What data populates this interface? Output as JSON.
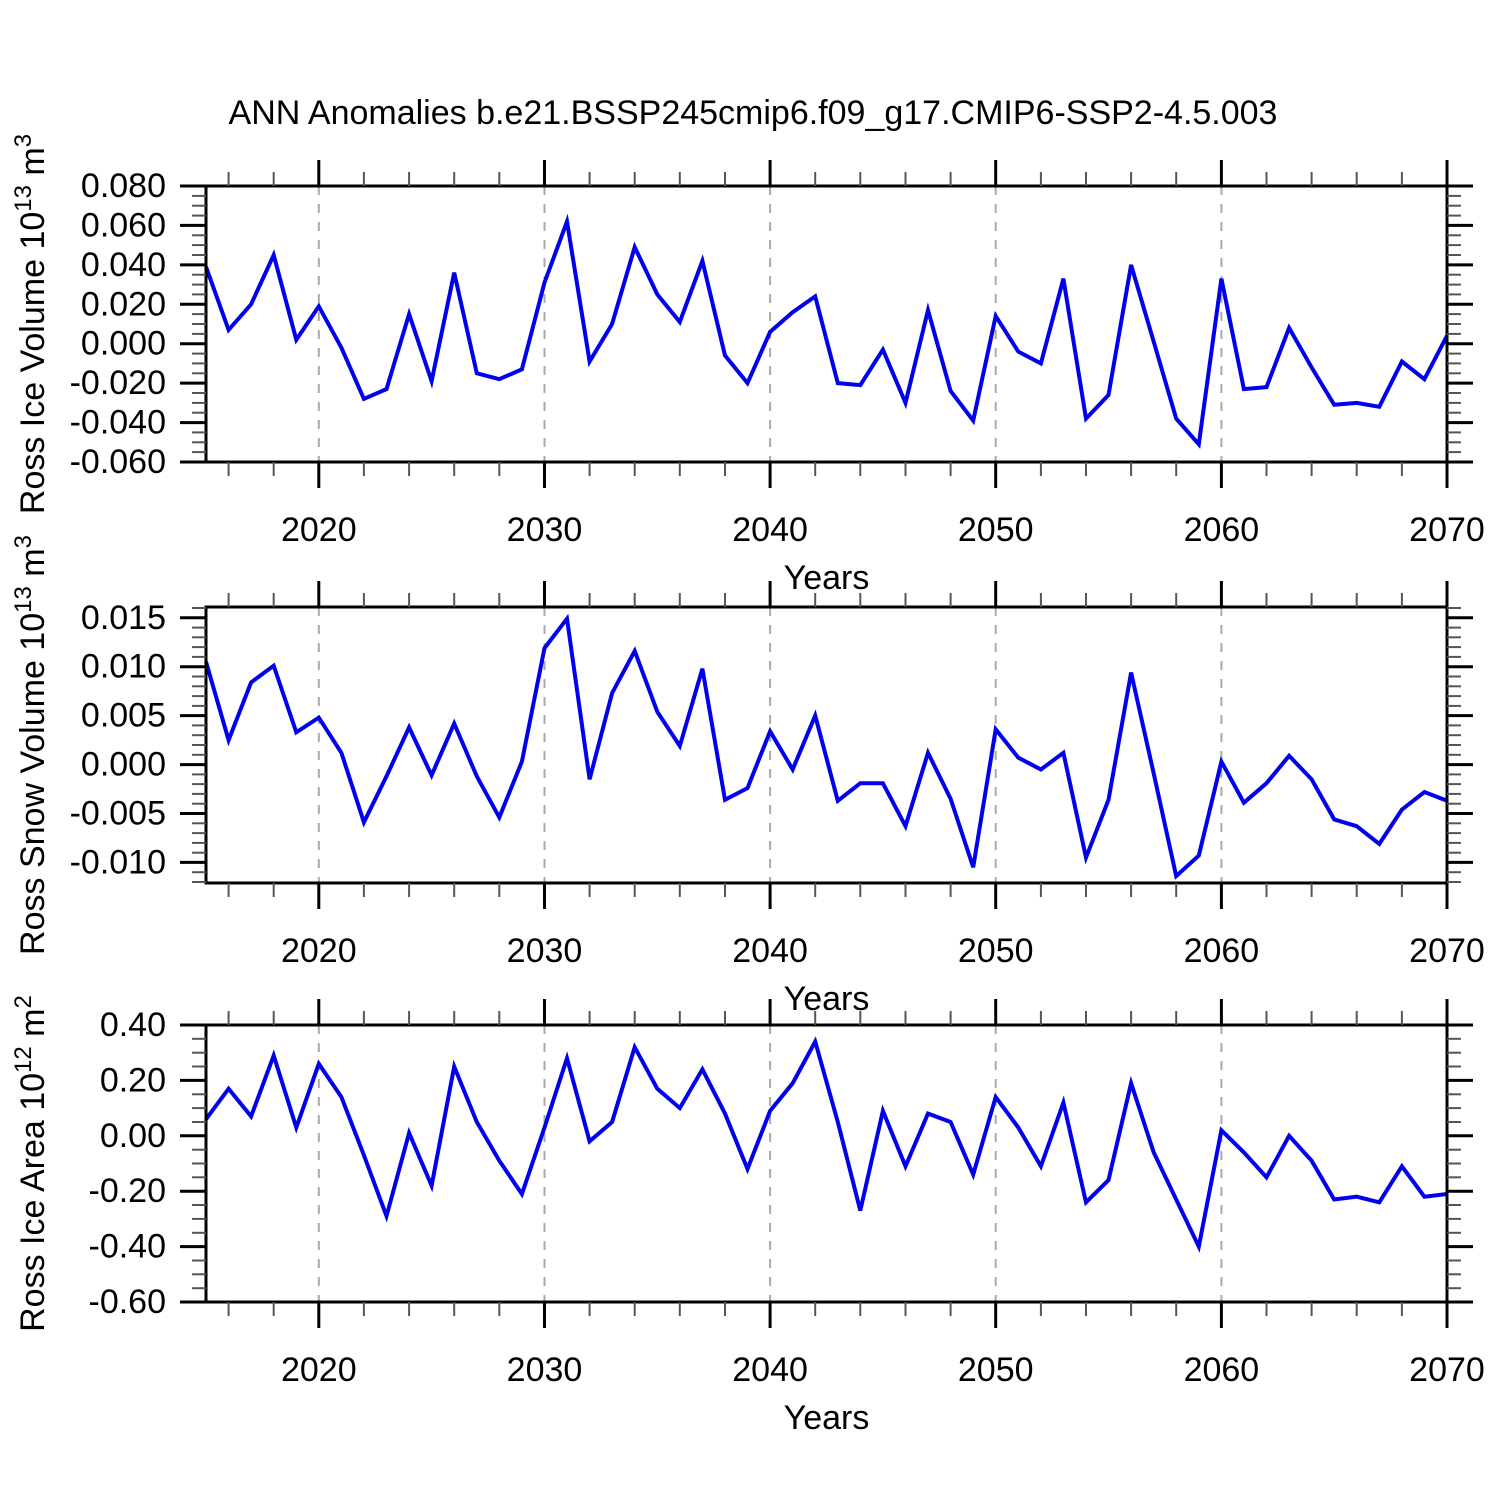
{
  "title": "ANN Anomalies b.e21.BSSP245cmip6.f09_g17.CMIP6-SSP2-4.5.003",
  "chart_data": {
    "type": "line",
    "title": "ANN Anomalies b.e21.BSSP245cmip6.f09_g17.CMIP6-SSP2-4.5.003",
    "x": {
      "label": "Years",
      "range": [
        2015,
        2070
      ],
      "years": [
        2015,
        2016,
        2017,
        2018,
        2019,
        2020,
        2021,
        2022,
        2023,
        2024,
        2025,
        2026,
        2027,
        2028,
        2029,
        2030,
        2031,
        2032,
        2033,
        2034,
        2035,
        2036,
        2037,
        2038,
        2039,
        2040,
        2041,
        2042,
        2043,
        2044,
        2045,
        2046,
        2047,
        2048,
        2049,
        2050,
        2051,
        2052,
        2053,
        2054,
        2055,
        2056,
        2057,
        2058,
        2059,
        2060,
        2061,
        2062,
        2063,
        2064,
        2065,
        2066,
        2067,
        2068,
        2069,
        2070
      ],
      "major_ticks": [
        2020,
        2030,
        2040,
        2050,
        2060,
        2070
      ],
      "major_tick_labels": [
        "2020",
        "2030",
        "2040",
        "2050",
        "2060",
        "2070"
      ],
      "minor_tick_step": 2,
      "gridline_years": [
        2020,
        2030,
        2040,
        2050,
        2060
      ]
    },
    "style": {
      "line_color": "#0000ee",
      "gridline_color": "#aaaaaa",
      "axis_color": "#000000",
      "minor_tick_color": "#555555"
    },
    "panels": [
      {
        "name": "ross-ice-volume",
        "ylabel": "Ross Ice Volume 10^13 m^3",
        "ylabel_parts": [
          {
            "t": "Ross Ice Volume 10"
          },
          {
            "t": "13",
            "sup": true
          },
          {
            "t": " m"
          },
          {
            "t": "3",
            "sup": true
          }
        ],
        "xlabel": "Years",
        "ylim": [
          -0.06,
          0.08
        ],
        "ytick_values": [
          0.08,
          0.06,
          0.04,
          0.02,
          0.0,
          -0.02,
          -0.04,
          -0.06
        ],
        "ytick_labels": [
          "0.080",
          "0.060",
          "0.040",
          "0.020",
          "0.000",
          "-0.020",
          "-0.040",
          "-0.060"
        ],
        "y_minor_step": 0.005,
        "grid": "vertical-dashed",
        "legend": "none",
        "values": [
          0.039,
          0.007,
          0.02,
          0.045,
          0.002,
          0.019,
          -0.002,
          -0.028,
          -0.023,
          0.015,
          -0.019,
          0.036,
          -0.015,
          -0.018,
          -0.013,
          0.031,
          0.062,
          -0.009,
          0.01,
          0.049,
          0.025,
          0.011,
          0.042,
          -0.006,
          -0.02,
          0.006,
          0.016,
          0.024,
          -0.02,
          -0.021,
          -0.003,
          -0.03,
          0.017,
          -0.024,
          -0.039,
          0.014,
          -0.004,
          -0.01,
          0.033,
          -0.038,
          -0.026,
          0.04,
          0.001,
          -0.038,
          -0.051,
          0.033,
          -0.023,
          -0.022,
          0.008,
          -0.012,
          -0.031,
          -0.03,
          -0.032,
          -0.009,
          -0.018,
          0.004
        ]
      },
      {
        "name": "ross-snow-volume",
        "ylabel": "Ross Snow Volume 10^13 m^3",
        "ylabel_parts": [
          {
            "t": "Ross Snow Volume 10"
          },
          {
            "t": "13",
            "sup": true
          },
          {
            "t": " m"
          },
          {
            "t": "3",
            "sup": true
          }
        ],
        "xlabel": "Years",
        "ylim": [
          -0.0121,
          0.0161
        ],
        "ytick_values": [
          0.015,
          0.01,
          0.005,
          0.0,
          -0.005,
          -0.01
        ],
        "ytick_labels": [
          "0.015",
          "0.010",
          "0.005",
          "0.000",
          "-0.005",
          "-0.010"
        ],
        "y_minor_step": 0.001,
        "grid": "vertical-dashed",
        "legend": "none",
        "values": [
          0.0105,
          0.0025,
          0.0084,
          0.0101,
          0.0033,
          0.0048,
          0.0012,
          -0.0059,
          -0.0012,
          0.0038,
          -0.0011,
          0.0042,
          -0.0012,
          -0.0054,
          0.0003,
          0.0119,
          0.0149,
          -0.0015,
          0.0073,
          0.0116,
          0.0054,
          0.0019,
          0.0098,
          -0.0036,
          -0.0024,
          0.0034,
          -0.0005,
          0.005,
          -0.0037,
          -0.0019,
          -0.0019,
          -0.0063,
          0.0012,
          -0.0035,
          -0.0105,
          0.0036,
          0.0007,
          -0.0005,
          0.0012,
          -0.0095,
          -0.0036,
          0.0094,
          -0.0009,
          -0.0114,
          -0.0093,
          0.0003,
          -0.0039,
          -0.0019,
          0.0009,
          -0.0015,
          -0.0056,
          -0.0063,
          -0.0081,
          -0.0046,
          -0.0028,
          -0.0037
        ]
      },
      {
        "name": "ross-ice-area",
        "ylabel": "Ross Ice Area 10^12 m^2",
        "ylabel_parts": [
          {
            "t": "Ross Ice Area 10"
          },
          {
            "t": "12",
            "sup": true
          },
          {
            "t": " m"
          },
          {
            "t": "2",
            "sup": true
          }
        ],
        "xlabel": "Years",
        "ylim": [
          -0.6,
          0.4
        ],
        "ytick_values": [
          0.4,
          0.2,
          0.0,
          -0.2,
          -0.4,
          -0.6
        ],
        "ytick_labels": [
          "0.40",
          "0.20",
          "0.00",
          "-0.20",
          "-0.40",
          "-0.60"
        ],
        "y_minor_step": 0.05,
        "grid": "vertical-dashed",
        "legend": "none",
        "values": [
          0.06,
          0.17,
          0.07,
          0.29,
          0.03,
          0.26,
          0.14,
          -0.07,
          -0.29,
          0.01,
          -0.18,
          0.25,
          0.05,
          -0.09,
          -0.21,
          0.03,
          0.28,
          -0.02,
          0.05,
          0.32,
          0.17,
          0.1,
          0.24,
          0.08,
          -0.12,
          0.09,
          0.19,
          0.34,
          0.05,
          -0.27,
          0.09,
          -0.11,
          0.08,
          0.05,
          -0.14,
          0.14,
          0.03,
          -0.11,
          0.12,
          -0.24,
          -0.16,
          0.19,
          -0.06,
          -0.23,
          -0.4,
          0.02,
          -0.06,
          -0.15,
          0.0,
          -0.09,
          -0.23,
          -0.22,
          -0.24,
          -0.11,
          -0.22,
          -0.21
        ]
      }
    ]
  }
}
